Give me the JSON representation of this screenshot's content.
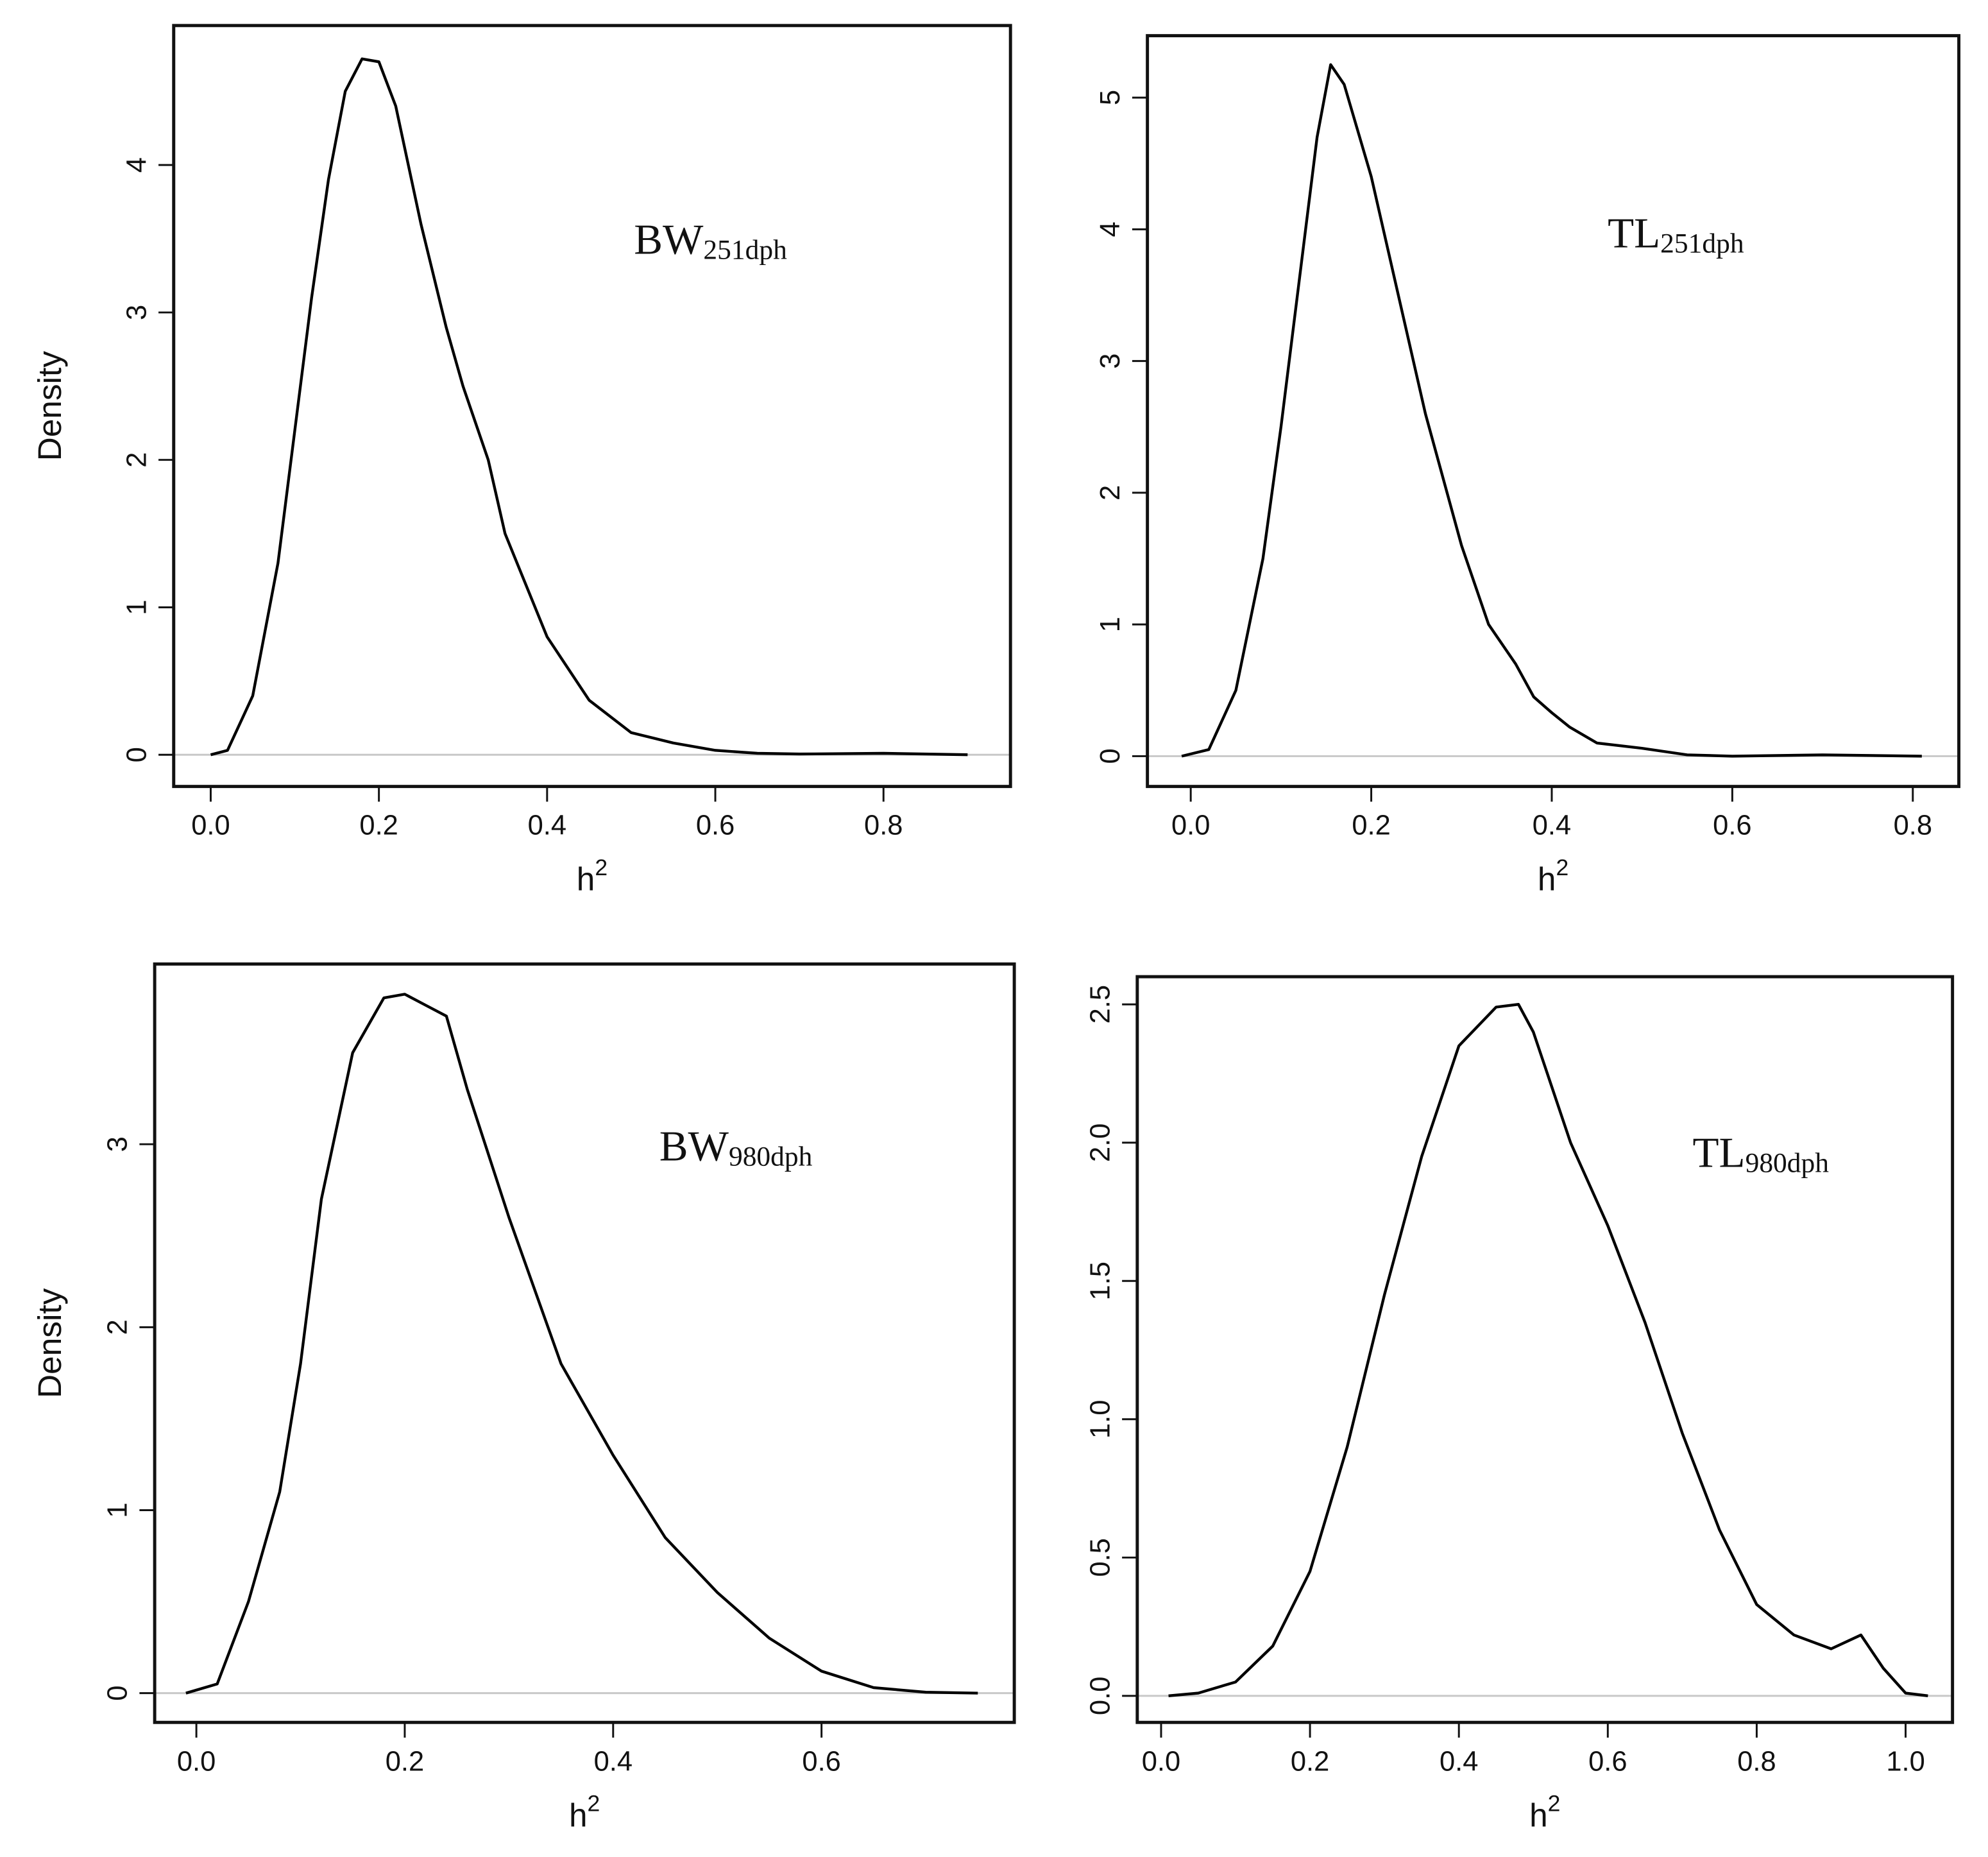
{
  "chart_data": [
    {
      "type": "line",
      "color": "#000000",
      "zero_line": true,
      "annotation": "BW",
      "annotation_sub": "251dph",
      "x_label": "h",
      "x_label_sup": "2",
      "y_label": "Density",
      "xlim": [
        -0.044,
        0.951
      ],
      "ylim": [
        -0.215,
        4.946
      ],
      "xticks": [
        {
          "value": 0,
          "label": "0.0"
        },
        0.2,
        0.4,
        0.6,
        0.8
      ],
      "yticks": [
        0,
        1,
        2,
        3,
        4
      ],
      "x": [
        0,
        0.02,
        0.05,
        0.08,
        0.1,
        0.12,
        0.14,
        0.16,
        0.18,
        0.2,
        0.22,
        0.25,
        0.28,
        0.3,
        0.33,
        0.35,
        0.4,
        0.45,
        0.5,
        0.55,
        0.6,
        0.65,
        0.7,
        0.8,
        0.9
      ],
      "values": [
        0,
        0.03,
        0.4,
        1.3,
        2.2,
        3.1,
        3.9,
        4.5,
        4.72,
        4.7,
        4.4,
        3.6,
        2.9,
        2.5,
        2.0,
        1.5,
        0.8,
        0.37,
        0.15,
        0.08,
        0.03,
        0.01,
        0.005,
        0.01,
        0
      ]
    },
    {
      "type": "line",
      "color": "#000000",
      "zero_line": true,
      "annotation": "TL",
      "annotation_sub": "251dph",
      "x_label": "h",
      "x_label_sup": "2",
      "xlim": [
        -0.048,
        0.851
      ],
      "ylim": [
        -0.23,
        5.47
      ],
      "xticks": [
        {
          "value": 0,
          "label": "0.0"
        },
        0.2,
        0.4,
        0.6,
        0.8
      ],
      "yticks": [
        0,
        1,
        2,
        3,
        4,
        5
      ],
      "x": [
        -0.01,
        0.02,
        0.05,
        0.08,
        0.1,
        0.12,
        0.14,
        0.155,
        0.17,
        0.2,
        0.23,
        0.26,
        0.3,
        0.33,
        0.36,
        0.38,
        0.4,
        0.42,
        0.45,
        0.5,
        0.55,
        0.6,
        0.7,
        0.81
      ],
      "values": [
        0,
        0.05,
        0.5,
        1.5,
        2.5,
        3.6,
        4.7,
        5.25,
        5.1,
        4.4,
        3.5,
        2.6,
        1.6,
        1.0,
        0.7,
        0.45,
        0.33,
        0.22,
        0.1,
        0.06,
        0.01,
        0,
        0.01,
        0
      ]
    },
    {
      "type": "line",
      "color": "#000000",
      "zero_line": true,
      "annotation": "BW",
      "annotation_sub": "980dph",
      "x_label": "h",
      "x_label_sup": "2",
      "y_label": "Density",
      "xlim": [
        -0.04,
        0.785
      ],
      "ylim": [
        -0.16,
        3.985
      ],
      "xticks": [
        {
          "value": 0,
          "label": "0.0"
        },
        0.2,
        0.4,
        0.6
      ],
      "yticks": [
        0,
        1,
        2,
        3
      ],
      "x": [
        -0.01,
        0.02,
        0.05,
        0.08,
        0.1,
        0.12,
        0.15,
        0.18,
        0.2,
        0.22,
        0.24,
        0.26,
        0.3,
        0.35,
        0.4,
        0.45,
        0.5,
        0.55,
        0.6,
        0.65,
        0.7,
        0.75
      ],
      "values": [
        0,
        0.05,
        0.5,
        1.1,
        1.8,
        2.7,
        3.5,
        3.8,
        3.82,
        3.76,
        3.7,
        3.3,
        2.6,
        1.8,
        1.3,
        0.85,
        0.55,
        0.3,
        0.12,
        0.03,
        0.005,
        0
      ]
    },
    {
      "type": "line",
      "color": "#000000",
      "zero_line": true,
      "annotation": "TL",
      "annotation_sub": "980dph",
      "x_label": "h",
      "x_label_sup": "2",
      "xlim": [
        -0.032,
        1.063
      ],
      "ylim": [
        -0.096,
        2.6
      ],
      "xticks": [
        {
          "value": 0,
          "label": "0.0"
        },
        0.2,
        0.4,
        0.6,
        0.8,
        {
          "value": 1,
          "label": "1.0"
        }
      ],
      "yticks": [
        {
          "value": 0,
          "label": "0.0"
        },
        0.5,
        {
          "value": 1,
          "label": "1.0"
        },
        1.5,
        {
          "value": 2,
          "label": "2.0"
        },
        2.5
      ],
      "x": [
        0.01,
        0.05,
        0.1,
        0.15,
        0.2,
        0.25,
        0.3,
        0.35,
        0.4,
        0.45,
        0.48,
        0.5,
        0.55,
        0.6,
        0.65,
        0.7,
        0.75,
        0.8,
        0.85,
        0.9,
        0.94,
        0.97,
        1.0,
        1.03
      ],
      "values": [
        0,
        0.01,
        0.05,
        0.18,
        0.45,
        0.9,
        1.45,
        1.95,
        2.35,
        2.49,
        2.5,
        2.4,
        2.0,
        1.7,
        1.35,
        0.95,
        0.6,
        0.33,
        0.22,
        0.17,
        0.22,
        0.1,
        0.01,
        0
      ]
    }
  ]
}
